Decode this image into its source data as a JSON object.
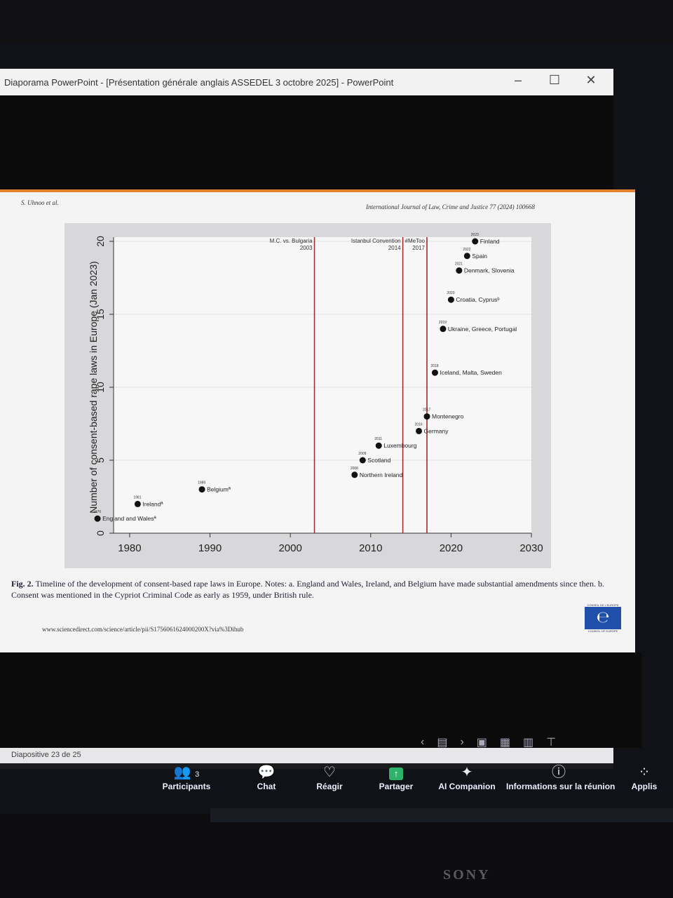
{
  "window": {
    "title": "Diaporama PowerPoint - [Présentation générale anglais ASSEDEL 3 octobre 2025] - PowerPoint",
    "minimize": "–",
    "maximize": "☐",
    "close": "✕"
  },
  "slide": {
    "header_left": "S. Uhnoo et al.",
    "header_right": "International Journal of Law, Crime and Justice 77 (2024) 100668",
    "caption_label": "Fig. 2.",
    "caption_text": "Timeline of the development of consent-based rape laws in Europe. Notes: a. England and Wales, Ireland, and Belgium have made substantial amendments since then. b. Consent was mentioned in the Cypriot Criminal Code as early as 1959, under British rule.",
    "url": "www.sciencedirect.com/science/article/pii/S1756061624000200X?via%3Dihub",
    "logo_top": "CONSEIL DE L'EUROPE",
    "logo_bottom": "COUNCIL OF EUROPE"
  },
  "chart_data": {
    "type": "scatter",
    "ylabel": "Number of consent-based rape laws in Europe (Jan 2023)",
    "xlabel": "",
    "xlim": [
      1976,
      2030
    ],
    "ylim": [
      0,
      20
    ],
    "xticks": [
      1980,
      1990,
      2000,
      2010,
      2020,
      2030
    ],
    "yticks": [
      0,
      5,
      10,
      15,
      20
    ],
    "grid": true,
    "points": [
      {
        "x": 1976,
        "y": 1,
        "year": "1976",
        "label": "England and Walesª"
      },
      {
        "x": 1981,
        "y": 2,
        "year": "1981",
        "label": "Irelandª"
      },
      {
        "x": 1989,
        "y": 3,
        "year": "1989",
        "label": "Belgiumª"
      },
      {
        "x": 2008,
        "y": 4,
        "year": "2008",
        "label": "Northern Ireland"
      },
      {
        "x": 2009,
        "y": 5,
        "year": "2009",
        "label": "Scotland"
      },
      {
        "x": 2011,
        "y": 6,
        "year": "2011",
        "label": "Luxembourg"
      },
      {
        "x": 2016,
        "y": 7,
        "year": "2016",
        "label": "Germany"
      },
      {
        "x": 2017,
        "y": 8,
        "year": "2017",
        "label": "Montenegro"
      },
      {
        "x": 2018,
        "y": 11,
        "year": "2018",
        "label": "Iceland, Malta, Sweden"
      },
      {
        "x": 2019,
        "y": 14,
        "year": "2019",
        "label": "Ukraine, Greece, Portugal"
      },
      {
        "x": 2020,
        "y": 16,
        "year": "2020",
        "label": "Croatia, Cyprusᵇ"
      },
      {
        "x": 2021,
        "y": 18,
        "year": "2021",
        "label": "Denmark, Slovenia"
      },
      {
        "x": 2022,
        "y": 19,
        "year": "2022",
        "label": "Spain"
      },
      {
        "x": 2023,
        "y": 20,
        "year": "2023",
        "label": "Finland"
      }
    ],
    "vlines": [
      {
        "x": 2003,
        "label": "M.C. vs. Bulgaria",
        "year": "2003",
        "color": "#a03030"
      },
      {
        "x": 2014,
        "label": "Istanbul Convention",
        "year": "2014",
        "color": "#b02828"
      },
      {
        "x": 2017,
        "label": "#MeToo",
        "year": "2017",
        "color": "#a02a2a"
      }
    ]
  },
  "nav": {
    "prev": "‹",
    "next": "›",
    "slide_counter": "Diapositive 23 de 25"
  },
  "zoom_toolbar": {
    "participants_label": "Participants",
    "participants_count": "3",
    "chat_label": "Chat",
    "react_label": "Réagir",
    "share_label": "Partager",
    "ai_label": "AI Companion",
    "info_label": "Informations sur la réunion",
    "apps_label": "Applis"
  },
  "monitor_brand": "SONY"
}
